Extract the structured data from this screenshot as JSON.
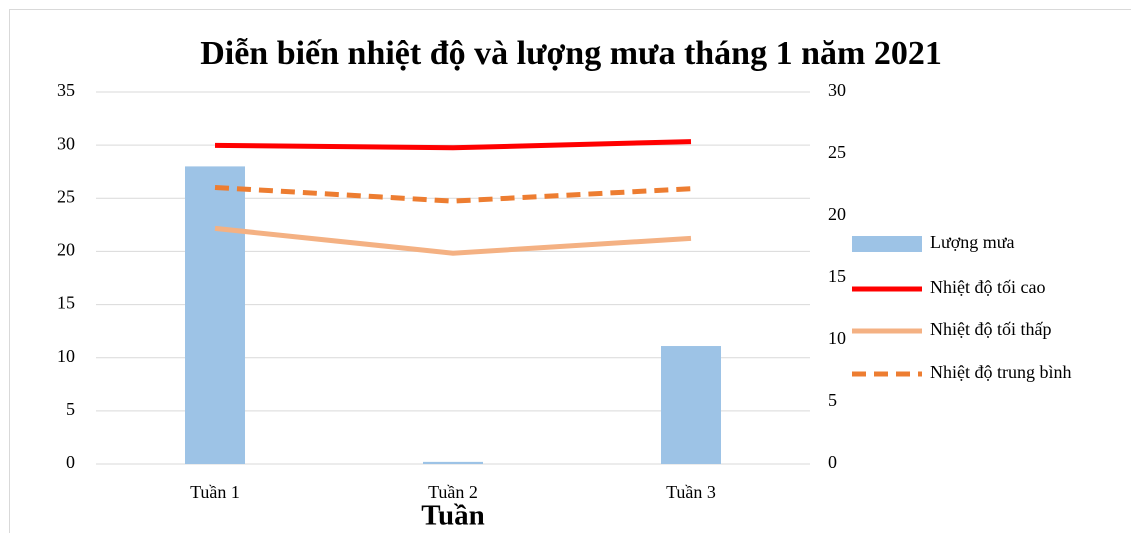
{
  "chart_data": {
    "type": "bar_line",
    "title": "Diễn biến nhiệt độ và lượng mưa tháng 1 năm 2021",
    "x_label": "Tuần",
    "categories": [
      "Tuần 1",
      "Tuần 2",
      "Tuần 3"
    ],
    "series": [
      {
        "name": "Lượng mưa",
        "type": "bar",
        "color": "#9dc3e6",
        "values": [
          28,
          0.2,
          11.1
        ]
      },
      {
        "name": "Nhiệt độ tối cao",
        "type": "line",
        "axis": "y2",
        "color": "#ff0000",
        "line_style": "solid",
        "values": [
          25.7,
          25.5,
          26.0
        ]
      },
      {
        "name": "Nhiệt độ tối thấp",
        "type": "line",
        "axis": "y2",
        "color": "#f4b183",
        "line_style": "solid",
        "values": [
          19.0,
          17.0,
          18.2
        ]
      },
      {
        "name": "Nhiệt độ trung bình",
        "type": "line",
        "axis": "y2",
        "color": "#ed7d31",
        "line_style": "dashed",
        "values": [
          22.3,
          21.2,
          22.2
        ]
      }
    ],
    "ylim": [
      0,
      35
    ],
    "yticks": [
      0,
      5,
      10,
      15,
      20,
      25,
      30,
      35
    ],
    "y2lim": [
      0,
      30
    ],
    "y2ticks": [
      0,
      5,
      10,
      15,
      20,
      25,
      30
    ],
    "grid": true,
    "legend": "right"
  }
}
